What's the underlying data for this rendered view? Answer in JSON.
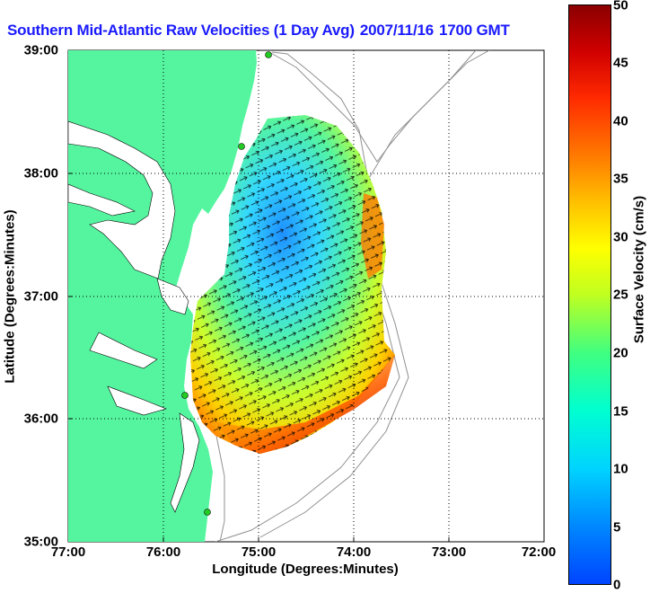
{
  "title": {
    "text": "Southern Mid-Atlantic Raw Velocities (1 Day Avg)",
    "date": "2007/11/16",
    "time": "1700 GMT"
  },
  "axes": {
    "x_label": "Longitude (Degrees:Minutes)",
    "y_label": "Latitude (Degrees:Minutes)",
    "x_ticks": [
      "77:00",
      "76:00",
      "75:00",
      "74:00",
      "73:00",
      "72:00"
    ],
    "y_ticks": [
      "39:00",
      "38:00",
      "37:00",
      "36:00",
      "35:00"
    ]
  },
  "colorbar": {
    "label": "Surface Velocity (cm/s)",
    "ticks": [
      "0",
      "5",
      "10",
      "15",
      "20",
      "25",
      "30",
      "35",
      "40",
      "45",
      "50"
    ],
    "min": 0,
    "max": 50
  },
  "colors": {
    "land": "#55f5a0",
    "water": "#ffffff",
    "contour": "#909090",
    "title": "#1a1aff",
    "station": "#22cc22"
  },
  "chart_data": {
    "type": "heatmap",
    "title": "Southern Mid-Atlantic Raw Velocities (1 Day Avg) 2007/11/16 1700 GMT",
    "xlabel": "Longitude (Degrees:Minutes)",
    "ylabel": "Latitude (Degrees:Minutes)",
    "xlim": [
      -77,
      -72
    ],
    "ylim": [
      35,
      39
    ],
    "value_label": "Surface Velocity (cm/s)",
    "value_range": [
      0,
      50
    ],
    "station_markers": [
      {
        "lon": -75.1,
        "lat": 38.99
      },
      {
        "lon": -75.1,
        "lat": 38.21
      },
      {
        "lon": -75.75,
        "lat": 36.19
      },
      {
        "lon": -75.47,
        "lat": 35.22
      }
    ]
  }
}
